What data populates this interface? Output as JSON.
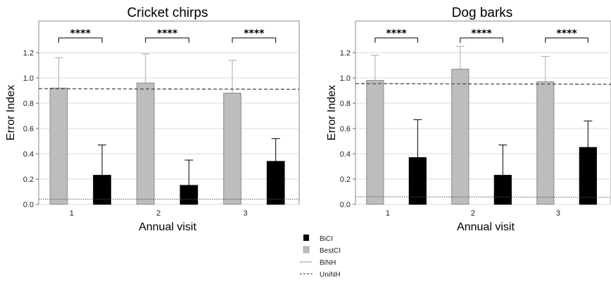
{
  "colors": {
    "BiCI": "#000000",
    "BestCI": "#bdbdbd",
    "grid": "#d9d9d9"
  },
  "legend": [
    {
      "label": "BiCI",
      "style": "filled-square-black"
    },
    {
      "label": "BestCI",
      "style": "filled-square-gray"
    },
    {
      "label": "BiNH",
      "style": "dotted-line"
    },
    {
      "label": "UniNH",
      "style": "dashed-line"
    }
  ],
  "chart_data": [
    {
      "type": "bar",
      "title": "Cricket chirps",
      "xlabel": "Annual visit",
      "ylabel": "Error Index",
      "categories": [
        "1",
        "2",
        "3"
      ],
      "ylim": [
        0,
        1.45
      ],
      "yticks": [
        "0.0",
        "0.2",
        "0.4",
        "0.6",
        "0.8",
        "1.0",
        "1.2"
      ],
      "grid": true,
      "series": [
        {
          "name": "BestCI",
          "values": [
            0.92,
            0.96,
            0.88
          ],
          "error_upper": [
            1.16,
            1.19,
            1.14
          ]
        },
        {
          "name": "BiCI",
          "values": [
            0.23,
            0.15,
            0.34
          ],
          "error_upper": [
            0.47,
            0.35,
            0.52
          ]
        }
      ],
      "reference_lines": [
        {
          "name": "UniNH",
          "y_start": 0.915,
          "y_end": 0.91,
          "style": "dashed"
        },
        {
          "name": "BiNH",
          "y_start": 0.04,
          "y_end": 0.04,
          "style": "dotted"
        }
      ],
      "significance": [
        "****",
        "****",
        "****"
      ]
    },
    {
      "type": "bar",
      "title": "Dog barks",
      "xlabel": "Annual visit",
      "ylabel": "Error Index",
      "categories": [
        "1",
        "2",
        "3"
      ],
      "ylim": [
        0,
        1.45
      ],
      "yticks": [
        "0.0",
        "0.2",
        "0.4",
        "0.6",
        "0.8",
        "1.0",
        "1.2"
      ],
      "grid": true,
      "series": [
        {
          "name": "BestCI",
          "values": [
            0.98,
            1.07,
            0.97
          ],
          "error_upper": [
            1.18,
            1.25,
            1.17
          ]
        },
        {
          "name": "BiCI",
          "values": [
            0.37,
            0.23,
            0.45
          ],
          "error_upper": [
            0.67,
            0.47,
            0.66
          ]
        }
      ],
      "reference_lines": [
        {
          "name": "UniNH",
          "y_start": 0.955,
          "y_end": 0.95,
          "style": "dashed"
        },
        {
          "name": "BiNH",
          "y_start": 0.06,
          "y_end": 0.055,
          "style": "dotted"
        }
      ],
      "significance": [
        "****",
        "****",
        "****"
      ]
    }
  ]
}
